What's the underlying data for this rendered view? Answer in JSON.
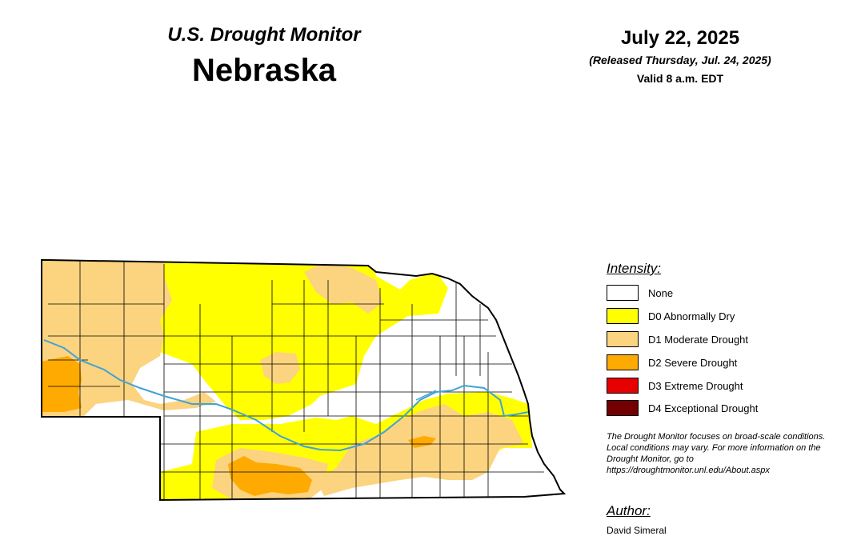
{
  "header": {
    "brand": "U.S. Drought Monitor",
    "state": "Nebraska",
    "date": "July 22, 2025",
    "released": "(Released Thursday, Jul. 24, 2025)",
    "valid": "Valid 8 a.m. EDT"
  },
  "legend": {
    "title": "Intensity:",
    "items": [
      {
        "label": "None",
        "color": "#ffffff"
      },
      {
        "label": "D0 Abnormally Dry",
        "color": "#ffff00"
      },
      {
        "label": "D1 Moderate Drought",
        "color": "#fcd37f"
      },
      {
        "label": "D2 Severe Drought",
        "color": "#ffaa00"
      },
      {
        "label": "D3 Extreme Drought",
        "color": "#e60000"
      },
      {
        "label": "D4 Exceptional Drought",
        "color": "#730000"
      }
    ]
  },
  "note": "The Drought Monitor focuses on broad-scale conditions. Local conditions may vary. For more information on the Drought Monitor, go to https://droughtmonitor.unl.edu/About.aspx",
  "author": {
    "title": "Author:",
    "name": "David Simeral"
  },
  "map_colors": {
    "none": "#ffffff",
    "d0": "#ffff00",
    "d1": "#fcd37f",
    "d2": "#ffaa00",
    "river": "#3fa3d6",
    "county_line": "#000000"
  }
}
